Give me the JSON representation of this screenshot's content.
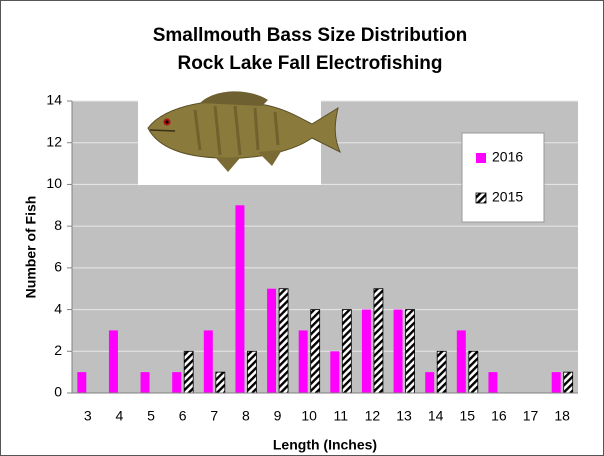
{
  "chart_data": {
    "type": "bar",
    "title": [
      "Smallmouth Bass Size Distribution",
      "Rock Lake Fall Electrofishing"
    ],
    "x_label": "Length (Inches)",
    "y_label": "Number of Fish",
    "categories": [
      "3",
      "4",
      "5",
      "6",
      "7",
      "8",
      "9",
      "10",
      "11",
      "12",
      "13",
      "14",
      "15",
      "16",
      "17",
      "18"
    ],
    "series": [
      {
        "name": "2016",
        "color": "#ff00ff",
        "values": [
          1,
          3,
          1,
          1,
          3,
          9,
          5,
          3,
          2,
          4,
          4,
          1,
          3,
          1,
          0,
          1
        ]
      },
      {
        "name": "2015",
        "color": "#000000",
        "hatched": true,
        "values": [
          0,
          0,
          0,
          2,
          1,
          2,
          5,
          4,
          4,
          5,
          4,
          2,
          2,
          0,
          0,
          1
        ]
      }
    ],
    "ylim": [
      0,
      14
    ],
    "yticks": [
      0,
      2,
      4,
      6,
      8,
      10,
      12,
      14
    ],
    "grid": true,
    "legend": "right"
  }
}
